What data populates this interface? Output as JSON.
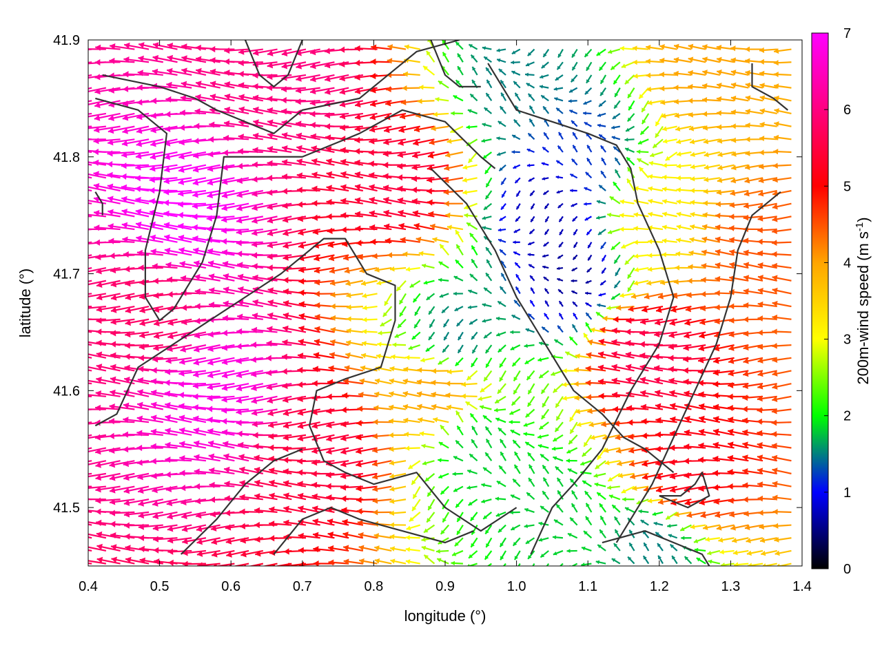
{
  "chart_data": {
    "type": "vector-field",
    "xlabel": "longitude (°)",
    "ylabel": "latitude (°)",
    "xlim": [
      0.4,
      1.4
    ],
    "ylim": [
      41.45,
      41.9
    ],
    "xticks": [
      {
        "value": 0.4,
        "label": "0.4"
      },
      {
        "value": 0.5,
        "label": "0.5"
      },
      {
        "value": 0.6,
        "label": "0.6"
      },
      {
        "value": 0.7,
        "label": "0.7"
      },
      {
        "value": 0.8,
        "label": "0.8"
      },
      {
        "value": 0.9,
        "label": "0.9"
      },
      {
        "value": 1.0,
        "label": "1.0"
      },
      {
        "value": 1.1,
        "label": "1.1"
      },
      {
        "value": 1.2,
        "label": "1.2"
      },
      {
        "value": 1.3,
        "label": "1.3"
      },
      {
        "value": 1.4,
        "label": "1.4"
      }
    ],
    "yticks": [
      {
        "value": 41.5,
        "label": "41.5"
      },
      {
        "value": 41.6,
        "label": "41.6"
      },
      {
        "value": 41.7,
        "label": "41.7"
      },
      {
        "value": 41.8,
        "label": "41.8"
      },
      {
        "value": 41.9,
        "label": "41.9"
      }
    ],
    "colorbar": {
      "label": "200m-wind speed (m s",
      "label_superscript": "-1",
      "label_suffix": ")",
      "range": [
        0,
        7
      ],
      "ticks": [
        {
          "value": 0,
          "label": "0"
        },
        {
          "value": 1,
          "label": "1"
        },
        {
          "value": 2,
          "label": "2"
        },
        {
          "value": 3,
          "label": "3"
        },
        {
          "value": 4,
          "label": "4"
        },
        {
          "value": 5,
          "label": "5"
        },
        {
          "value": 6,
          "label": "6"
        },
        {
          "value": 7,
          "label": "7"
        }
      ],
      "colors": [
        "#000000",
        "#0000ff",
        "#00ff00",
        "#ffff00",
        "#ffa500",
        "#ff0000",
        "#ff00ff"
      ]
    },
    "wind_field": {
      "grid_dlon": 0.02,
      "grid_dlat": 0.011,
      "dominant_direction": "westward",
      "speed_regions": [
        {
          "lon": 0.55,
          "lat": 41.75,
          "speed": 7.0
        },
        {
          "lon": 0.6,
          "lat": 41.6,
          "speed": 6.8
        },
        {
          "lon": 0.5,
          "lat": 41.67,
          "speed": 5.8
        },
        {
          "lon": 0.7,
          "lat": 41.86,
          "speed": 6.0
        },
        {
          "lon": 0.74,
          "lat": 41.55,
          "speed": 5.5
        },
        {
          "lon": 0.85,
          "lat": 41.78,
          "speed": 5.5
        },
        {
          "lon": 0.9,
          "lat": 41.6,
          "speed": 4.0
        },
        {
          "lon": 0.92,
          "lat": 41.65,
          "speed": 1.5
        },
        {
          "lon": 0.95,
          "lat": 41.55,
          "speed": 1.8
        },
        {
          "lon": 1.05,
          "lat": 41.76,
          "speed": 0.7
        },
        {
          "lon": 1.08,
          "lat": 41.7,
          "speed": 0.6
        },
        {
          "lon": 1.1,
          "lat": 41.8,
          "speed": 1.2
        },
        {
          "lon": 1.0,
          "lat": 41.86,
          "speed": 1.5
        },
        {
          "lon": 1.2,
          "lat": 41.63,
          "speed": 5.6
        },
        {
          "lon": 1.25,
          "lat": 41.53,
          "speed": 5.2
        },
        {
          "lon": 1.28,
          "lat": 41.88,
          "speed": 4.0
        },
        {
          "lon": 1.2,
          "lat": 41.75,
          "speed": 3.2
        },
        {
          "lon": 1.05,
          "lat": 41.5,
          "speed": 1.8
        },
        {
          "lon": 1.2,
          "lat": 41.47,
          "speed": 1.5
        },
        {
          "lon": 1.35,
          "lat": 41.72,
          "speed": 4.5
        }
      ]
    },
    "outlines": [
      {
        "name": "coast-west",
        "points": [
          [
            0.42,
            41.87
          ],
          [
            0.5,
            41.86
          ],
          [
            0.55,
            41.85
          ],
          [
            0.58,
            41.84
          ],
          [
            0.62,
            41.83
          ],
          [
            0.66,
            41.82
          ],
          [
            0.7,
            41.84
          ],
          [
            0.78,
            41.85
          ],
          [
            0.82,
            41.87
          ],
          [
            0.86,
            41.89
          ],
          [
            0.92,
            41.9
          ]
        ]
      },
      {
        "name": "basin-west",
        "points": [
          [
            0.41,
            41.85
          ],
          [
            0.47,
            41.84
          ],
          [
            0.51,
            41.82
          ],
          [
            0.5,
            41.77
          ],
          [
            0.48,
            41.72
          ],
          [
            0.48,
            41.68
          ],
          [
            0.5,
            41.66
          ],
          [
            0.52,
            41.67
          ],
          [
            0.54,
            41.69
          ],
          [
            0.56,
            41.71
          ],
          [
            0.58,
            41.75
          ],
          [
            0.59,
            41.8
          ],
          [
            0.62,
            41.8
          ],
          [
            0.7,
            41.8
          ],
          [
            0.78,
            41.82
          ],
          [
            0.84,
            41.84
          ],
          [
            0.9,
            41.83
          ],
          [
            0.95,
            41.8
          ],
          [
            0.97,
            41.79
          ]
        ]
      },
      {
        "name": "ridge-center",
        "points": [
          [
            0.41,
            41.57
          ],
          [
            0.44,
            41.58
          ],
          [
            0.47,
            41.62
          ],
          [
            0.52,
            41.64
          ],
          [
            0.57,
            41.66
          ],
          [
            0.62,
            41.68
          ],
          [
            0.67,
            41.7
          ],
          [
            0.73,
            41.73
          ],
          [
            0.76,
            41.73
          ],
          [
            0.79,
            41.7
          ],
          [
            0.83,
            41.69
          ],
          [
            0.83,
            41.66
          ],
          [
            0.81,
            41.62
          ],
          [
            0.76,
            41.61
          ],
          [
            0.72,
            41.6
          ],
          [
            0.71,
            41.57
          ],
          [
            0.73,
            41.54
          ],
          [
            0.76,
            41.53
          ],
          [
            0.8,
            41.52
          ],
          [
            0.86,
            41.53
          ],
          [
            0.9,
            41.5
          ],
          [
            0.95,
            41.48
          ],
          [
            1.0,
            41.5
          ]
        ]
      },
      {
        "name": "valley-east",
        "points": [
          [
            0.88,
            41.79
          ],
          [
            0.93,
            41.76
          ],
          [
            0.97,
            41.72
          ],
          [
            1.0,
            41.68
          ],
          [
            1.02,
            41.66
          ],
          [
            1.04,
            41.64
          ],
          [
            1.06,
            41.62
          ],
          [
            1.08,
            41.6
          ],
          [
            1.12,
            41.58
          ],
          [
            1.15,
            41.56
          ],
          [
            1.18,
            41.55
          ],
          [
            1.2,
            41.54
          ],
          [
            1.22,
            41.53
          ]
        ]
      },
      {
        "name": "river-north",
        "points": [
          [
            0.96,
            41.88
          ],
          [
            1.0,
            41.84
          ],
          [
            1.05,
            41.83
          ],
          [
            1.1,
            41.82
          ],
          [
            1.14,
            41.81
          ],
          [
            1.16,
            41.79
          ],
          [
            1.17,
            41.76
          ],
          [
            1.2,
            41.72
          ],
          [
            1.22,
            41.68
          ],
          [
            1.2,
            41.64
          ],
          [
            1.16,
            41.6
          ],
          [
            1.12,
            41.55
          ],
          [
            1.08,
            41.52
          ],
          [
            1.05,
            41.5
          ],
          [
            1.02,
            41.46
          ]
        ]
      },
      {
        "name": "east-line",
        "points": [
          [
            1.37,
            41.77
          ],
          [
            1.33,
            41.75
          ],
          [
            1.31,
            41.72
          ],
          [
            1.3,
            41.68
          ],
          [
            1.28,
            41.64
          ],
          [
            1.25,
            41.6
          ],
          [
            1.22,
            41.56
          ],
          [
            1.19,
            41.52
          ],
          [
            1.16,
            41.49
          ],
          [
            1.14,
            41.47
          ]
        ]
      },
      {
        "name": "loop-east",
        "points": [
          [
            1.2,
            41.51
          ],
          [
            1.23,
            41.51
          ],
          [
            1.25,
            41.52
          ],
          [
            1.26,
            41.53
          ],
          [
            1.27,
            41.51
          ],
          [
            1.24,
            41.5
          ],
          [
            1.2,
            41.51
          ]
        ]
      },
      {
        "name": "north-east",
        "points": [
          [
            1.33,
            41.88
          ],
          [
            1.33,
            41.86
          ],
          [
            1.36,
            41.85
          ],
          [
            1.38,
            41.84
          ]
        ]
      },
      {
        "name": "south-line",
        "points": [
          [
            0.53,
            41.46
          ],
          [
            0.58,
            41.49
          ],
          [
            0.62,
            41.52
          ],
          [
            0.66,
            41.54
          ],
          [
            0.7,
            41.55
          ]
        ]
      },
      {
        "name": "south-line-2",
        "points": [
          [
            0.66,
            41.46
          ],
          [
            0.7,
            41.49
          ],
          [
            0.74,
            41.5
          ],
          [
            0.78,
            41.49
          ],
          [
            0.84,
            41.48
          ],
          [
            0.9,
            41.47
          ],
          [
            0.94,
            41.48
          ]
        ]
      },
      {
        "name": "south-east-loop",
        "points": [
          [
            1.12,
            41.47
          ],
          [
            1.18,
            41.48
          ],
          [
            1.22,
            41.47
          ],
          [
            1.26,
            41.46
          ],
          [
            1.27,
            41.45
          ]
        ]
      },
      {
        "name": "north-loop",
        "points": [
          [
            0.62,
            41.9
          ],
          [
            0.64,
            41.87
          ],
          [
            0.66,
            41.86
          ],
          [
            0.68,
            41.87
          ],
          [
            0.7,
            41.9
          ]
        ]
      },
      {
        "name": "north-small",
        "points": [
          [
            0.88,
            41.9
          ],
          [
            0.9,
            41.87
          ],
          [
            0.92,
            41.86
          ],
          [
            0.95,
            41.86
          ]
        ]
      },
      {
        "name": "west-spur",
        "points": [
          [
            0.41,
            41.77
          ],
          [
            0.42,
            41.76
          ],
          [
            0.42,
            41.75
          ]
        ]
      }
    ]
  }
}
